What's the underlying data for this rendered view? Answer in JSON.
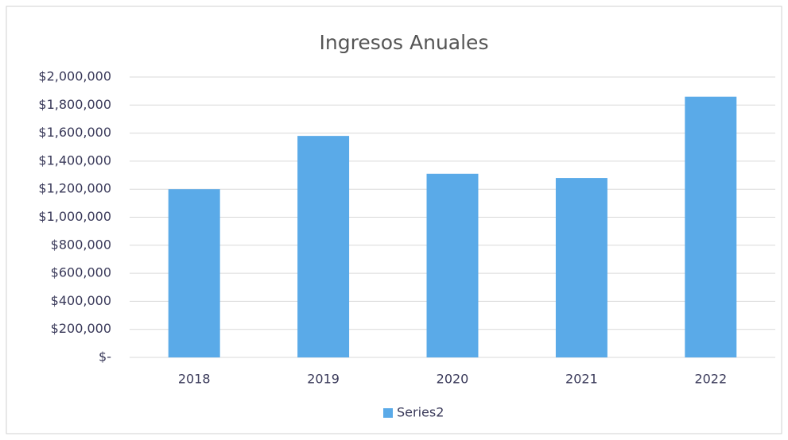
{
  "chart_data": {
    "type": "bar",
    "title": "Ingresos Anuales",
    "categories": [
      "2018",
      "2019",
      "2020",
      "2021",
      "2022"
    ],
    "series": [
      {
        "name": "Series2",
        "color": "#5aaae8",
        "values": [
          1200000,
          1580000,
          1310000,
          1280000,
          1860000
        ]
      }
    ],
    "ylim": [
      0,
      2000000
    ],
    "yticks": [
      {
        "value": 0,
        "label": "$-"
      },
      {
        "value": 200000,
        "label": "$200,000"
      },
      {
        "value": 400000,
        "label": "$400,000"
      },
      {
        "value": 600000,
        "label": "$600,000"
      },
      {
        "value": 800000,
        "label": "$800,000"
      },
      {
        "value": 1000000,
        "label": "$1,000,000"
      },
      {
        "value": 1200000,
        "label": "$1,200,000"
      },
      {
        "value": 1400000,
        "label": "$1,400,000"
      },
      {
        "value": 1600000,
        "label": "$1,600,000"
      },
      {
        "value": 1800000,
        "label": "$1,800,000"
      },
      {
        "value": 2000000,
        "label": "$2,000,000"
      }
    ],
    "grid": true,
    "legend": "bottom"
  }
}
